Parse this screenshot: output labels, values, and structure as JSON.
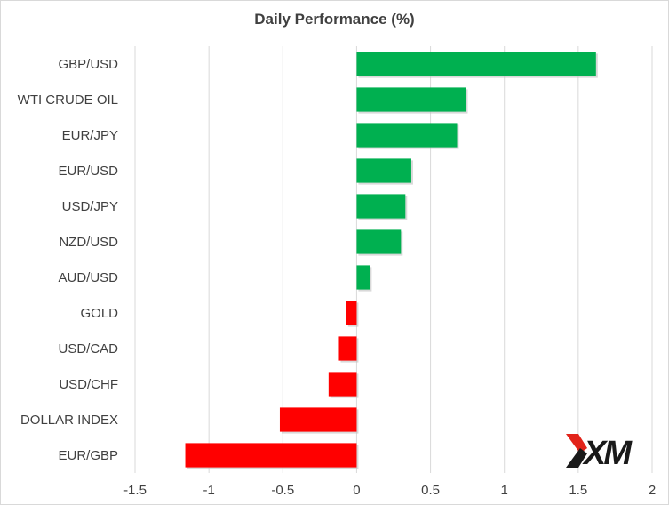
{
  "chart_data": {
    "type": "bar",
    "orientation": "horizontal",
    "title": "Daily Performance (%)",
    "xlabel": "",
    "ylabel": "",
    "categories": [
      "GBP/USD",
      "WTI CRUDE OIL",
      "EUR/JPY",
      "EUR/USD",
      "USD/JPY",
      "NZD/USD",
      "AUD/USD",
      "GOLD",
      "USD/CAD",
      "USD/CHF",
      "DOLLAR INDEX",
      "EUR/GBP"
    ],
    "values": [
      1.62,
      0.74,
      0.68,
      0.37,
      0.33,
      0.3,
      0.09,
      -0.07,
      -0.12,
      -0.19,
      -0.52,
      -1.16
    ],
    "xlim": [
      -1.5,
      2
    ],
    "xticks": [
      "-1.5",
      "-1",
      "-0.5",
      "0",
      "0.5",
      "1",
      "1.5",
      "2"
    ],
    "xtick_values": [
      -1.5,
      -1,
      -0.5,
      0,
      0.5,
      1,
      1.5,
      2
    ],
    "grid": true,
    "legend": "none",
    "colors": {
      "positive": "#00b050",
      "negative": "#ff0000",
      "grid": "#d9d9d9",
      "text": "#404040"
    }
  },
  "logo": {
    "text": "XM",
    "icon": "xm-logo"
  }
}
